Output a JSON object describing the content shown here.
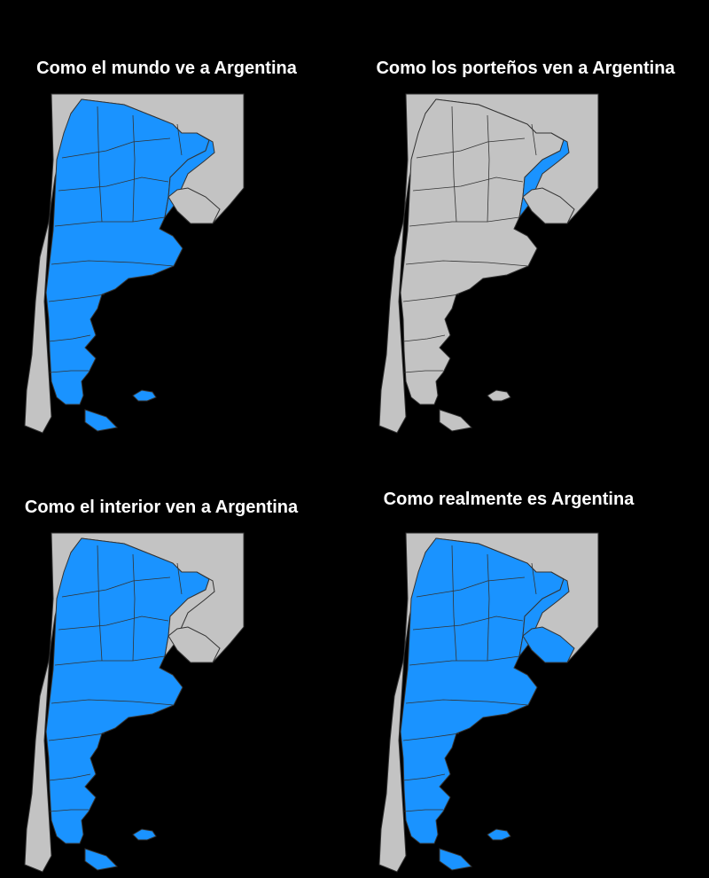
{
  "panels": [
    {
      "title": "Como el mundo ve a Argentina",
      "highlight": [
        "mainland",
        "buenos_aires",
        "tierra_del_fuego",
        "malvinas"
      ]
    },
    {
      "title": "Como los porteños ven a Argentina",
      "highlight": [
        "buenos_aires"
      ]
    },
    {
      "title": "Como el interior ven a Argentina",
      "highlight": [
        "mainland",
        "tierra_del_fuego",
        "malvinas"
      ]
    },
    {
      "title": "Como realmente es Argentina",
      "highlight": [
        "mainland",
        "buenos_aires",
        "uruguay",
        "tierra_del_fuego",
        "malvinas"
      ]
    }
  ],
  "colors": {
    "background": "#000000",
    "highlight": "#1a93ff",
    "land": "#c3c3c3",
    "border": "#333333",
    "title": "#ffffff"
  }
}
